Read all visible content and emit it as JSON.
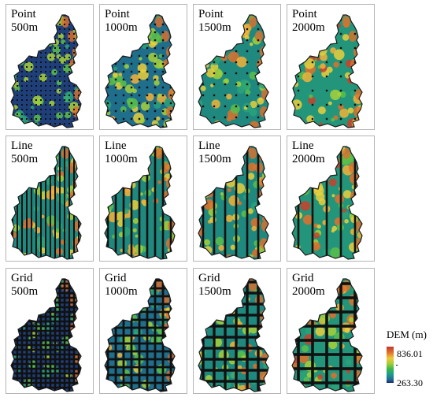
{
  "panels": [
    {
      "method": "Point",
      "res": "500m",
      "kind": "point",
      "spacing": 500,
      "theme": 0
    },
    {
      "method": "Point",
      "res": "1000m",
      "kind": "point",
      "spacing": 1000,
      "theme": 1
    },
    {
      "method": "Point",
      "res": "1500m",
      "kind": "point",
      "spacing": 1500,
      "theme": 2
    },
    {
      "method": "Point",
      "res": "2000m",
      "kind": "point",
      "spacing": 2000,
      "theme": 3
    },
    {
      "method": "Line",
      "res": "500m",
      "kind": "line",
      "spacing": 500,
      "theme": 2
    },
    {
      "method": "Line",
      "res": "1000m",
      "kind": "line",
      "spacing": 1000,
      "theme": 2
    },
    {
      "method": "Line",
      "res": "1500m",
      "kind": "line",
      "spacing": 1500,
      "theme": 2
    },
    {
      "method": "Line",
      "res": "2000m",
      "kind": "line",
      "spacing": 2000,
      "theme": 3
    },
    {
      "method": "Grid",
      "res": "500m",
      "kind": "grid",
      "spacing": 500,
      "theme": 0
    },
    {
      "method": "Grid",
      "res": "1000m",
      "kind": "grid",
      "spacing": 1000,
      "theme": 1
    },
    {
      "method": "Grid",
      "res": "1500m",
      "kind": "grid",
      "spacing": 1500,
      "theme": 2
    },
    {
      "method": "Grid",
      "res": "2000m",
      "kind": "grid",
      "spacing": 2000,
      "theme": 3
    }
  ],
  "legend": {
    "title": "DEM (m)",
    "max": "836.01",
    "min": "263.30",
    "colors": [
      "#1a2d6e",
      "#1f6f96",
      "#1e9e8a",
      "#38b54a",
      "#9ccc3b",
      "#f2c93a",
      "#e0702c",
      "#c0392b"
    ]
  }
}
